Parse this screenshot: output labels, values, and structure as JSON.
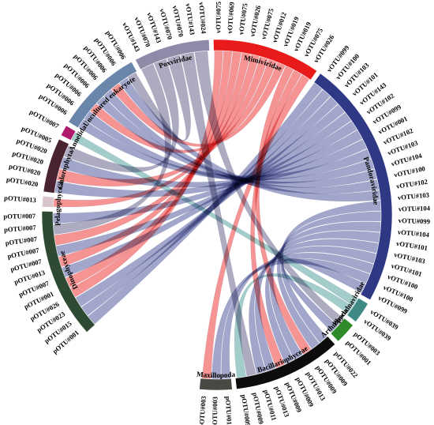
{
  "groups": [
    {
      "id": "dinophyceae",
      "name": "Dinophyceae",
      "color": "#2e4a32",
      "labels": [
        "pOTU#001",
        "pOTU#015",
        "pOTU#023",
        "pOTU#026",
        "pOTU#001",
        "pOTU#007",
        "pOTU#013",
        "pOTU#007",
        "pOTU#007",
        "pOTU#007",
        "pOTU#007",
        "pOTU#007"
      ]
    },
    {
      "id": "pelagophyceae",
      "name": "Pelagophyceae",
      "color": "#d9c4cd",
      "labels": [
        "pOTU#013"
      ]
    },
    {
      "id": "chlorophyta",
      "name": "Chlorophyta",
      "color": "#4a2333",
      "labels": [
        "pOTU#020",
        "pOTU#020",
        "pOTU#020",
        "pOTU#020",
        "pOTU#005"
      ]
    },
    {
      "id": "annelida",
      "name": "Annelida",
      "color": "#b01a6c",
      "labels": [
        "pOTU#007"
      ]
    },
    {
      "id": "uncultured",
      "name": "Uncultured eukaryote",
      "color": "#6b86ab",
      "labels": [
        "pOTU#006",
        "pOTU#006",
        "pOTU#006",
        "pOTU#006",
        "pOTU#006",
        "pOTU#006",
        "pOTU#006",
        "pOTU#006"
      ]
    },
    {
      "id": "poxviridae",
      "name": "Poxviridae",
      "color": "#8e8ba8",
      "labels": [
        "vOTU#143",
        "vOTU#070",
        "vOTU#143",
        "vOTU#070",
        "vOTU#070",
        "vOTU#143",
        "vOTU#024"
      ]
    },
    {
      "id": "mimiviridae",
      "name": "Mimiviridae",
      "color": "#e81a1a",
      "labels": [
        "vOTU#075",
        "vOTU#069",
        "vOTU#075",
        "vOTU#026",
        "vOTU#075",
        "vOTU#012",
        "vOTU#019",
        "vOTU#019",
        "vOTU#075",
        "vOTU#026"
      ]
    },
    {
      "id": "pandoraviridae",
      "name": "Pandoraviridae",
      "color": "#2e3885",
      "labels": [
        "vOTU#099",
        "vOTU#100",
        "vOTU#103",
        "vOTU#101",
        "vOTU#143",
        "vOTU#102",
        "vOTU#099",
        "vOTU#001",
        "vOTU#102",
        "vOTU#103",
        "vOTU#104",
        "vOTU#100",
        "vOTU#102",
        "vOTU#103",
        "vOTU#104",
        "vOTU#099",
        "vOTU#104",
        "vOTU#101",
        "vOTU#103",
        "vOTU#101",
        "vOTU#100",
        "vOTU#100",
        "vOTU#099"
      ]
    },
    {
      "id": "phycodnaviridae",
      "name": "Phycodnaviridae",
      "color": "#3f8a85",
      "labels": [
        "vOTU#039",
        "vOTU#039"
      ]
    },
    {
      "id": "arthropoda",
      "name": "Arthropoda",
      "color": "#2f8a2a",
      "labels": [
        "pOTU#003",
        "pOTU#001"
      ]
    },
    {
      "id": "bacillariophyceae",
      "name": "Bacillariophyceae",
      "color": "#0c0c0c",
      "labels": [
        "pOTU#022",
        "pOTU#009",
        "pOTU#009",
        "pOTU#013",
        "pOTU#009",
        "pOTU#009",
        "pOTU#013",
        "pOTU#011",
        "pOTU#009",
        "pOTU#009"
      ]
    },
    {
      "id": "maxillopoda",
      "name": "Maxillopoda",
      "color": "#474a42",
      "labels": [
        "pOTU#015",
        "pOTU#003",
        "pOTU#003"
      ]
    }
  ],
  "links": [
    {
      "from": "dinophyceae",
      "to": "pandoraviridae",
      "color": "#7d84b5"
    },
    {
      "from": "dinophyceae",
      "to": "pandoraviridae",
      "color": "#7d84b5"
    },
    {
      "from": "dinophyceae",
      "to": "pandoraviridae",
      "color": "#7d84b5"
    },
    {
      "from": "dinophyceae",
      "to": "mimiviridae",
      "color": "#f26a6a"
    },
    {
      "from": "dinophyceae",
      "to": "mimiviridae",
      "color": "#f26a6a"
    },
    {
      "from": "dinophyceae",
      "to": "pandoraviridae",
      "color": "#7d84b5"
    },
    {
      "from": "dinophyceae",
      "to": "mimiviridae",
      "color": "#f26a6a"
    },
    {
      "from": "dinophyceae",
      "to": "pandoraviridae",
      "color": "#7d84b5"
    },
    {
      "from": "dinophyceae",
      "to": "mimiviridae",
      "color": "#f26a6a"
    },
    {
      "from": "dinophyceae",
      "to": "poxviridae",
      "color": "#8e8ba8"
    },
    {
      "from": "dinophyceae",
      "to": "pandoraviridae",
      "color": "#7d84b5"
    },
    {
      "from": "pelagophyceae",
      "to": "mimiviridae",
      "color": "#f26a6a"
    },
    {
      "from": "chlorophyta",
      "to": "pandoraviridae",
      "color": "#7d84b5"
    },
    {
      "from": "chlorophyta",
      "to": "mimiviridae",
      "color": "#f26a6a"
    },
    {
      "from": "chlorophyta",
      "to": "pandoraviridae",
      "color": "#7d84b5"
    },
    {
      "from": "chlorophyta",
      "to": "poxviridae",
      "color": "#8e8ba8"
    },
    {
      "from": "annelida",
      "to": "phycodnaviridae",
      "color": "#7fbab5"
    },
    {
      "from": "uncultured",
      "to": "pandoraviridae",
      "color": "#7d84b5"
    },
    {
      "from": "uncultured",
      "to": "pandoraviridae",
      "color": "#7d84b5"
    },
    {
      "from": "uncultured",
      "to": "mimiviridae",
      "color": "#f26a6a"
    },
    {
      "from": "uncultured",
      "to": "pandoraviridae",
      "color": "#7d84b5"
    },
    {
      "from": "uncultured",
      "to": "pandoraviridae",
      "color": "#7d84b5"
    },
    {
      "from": "uncultured",
      "to": "mimiviridae",
      "color": "#f26a6a"
    },
    {
      "from": "uncultured",
      "to": "pandoraviridae",
      "color": "#7d84b5"
    },
    {
      "from": "uncultured",
      "to": "poxviridae",
      "color": "#8e8ba8"
    },
    {
      "from": "bacillariophyceae",
      "to": "pandoraviridae",
      "color": "#7d84b5"
    },
    {
      "from": "bacillariophyceae",
      "to": "pandoraviridae",
      "color": "#7d84b5"
    },
    {
      "from": "bacillariophyceae",
      "to": "mimiviridae",
      "color": "#f26a6a"
    },
    {
      "from": "bacillariophyceae",
      "to": "pandoraviridae",
      "color": "#7d84b5"
    },
    {
      "from": "bacillariophyceae",
      "to": "pandoraviridae",
      "color": "#7d84b5"
    },
    {
      "from": "bacillariophyceae",
      "to": "mimiviridae",
      "color": "#f26a6a"
    },
    {
      "from": "bacillariophyceae",
      "to": "pandoraviridae",
      "color": "#7d84b5"
    },
    {
      "from": "bacillariophyceae",
      "to": "pandoraviridae",
      "color": "#7d84b5"
    },
    {
      "from": "bacillariophyceae",
      "to": "poxviridae",
      "color": "#8e8ba8"
    },
    {
      "from": "bacillariophyceae",
      "to": "phycodnaviridae",
      "color": "#7fbab5"
    },
    {
      "from": "maxillopoda",
      "to": "pandoraviridae",
      "color": "#7d84b5"
    },
    {
      "from": "maxillopoda",
      "to": "pandoraviridae",
      "color": "#7d84b5"
    },
    {
      "from": "maxillopoda",
      "to": "mimiviridae",
      "color": "#f26a6a"
    },
    {
      "from": "arthropoda",
      "to": "poxviridae",
      "color": "#8e8ba8"
    },
    {
      "from": "arthropoda",
      "to": "pandoraviridae",
      "color": "#7d84b5"
    }
  ]
}
